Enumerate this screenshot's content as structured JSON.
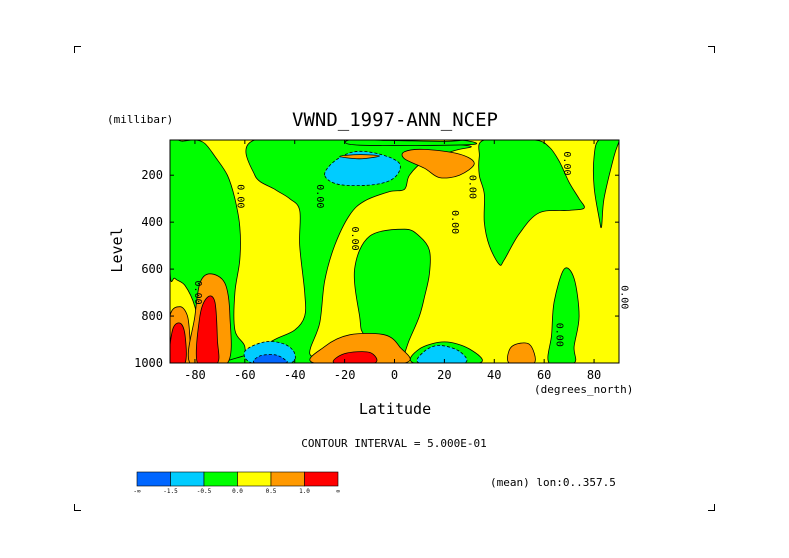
{
  "chart_data": {
    "type": "heatmap",
    "title": "VWND_1997-ANN_NCEP",
    "xlabel": "Latitude",
    "ylabel": "Level",
    "x_units": "(degrees_north)",
    "y_units": "(millibar)",
    "xlim": [
      -90,
      90
    ],
    "ylim": [
      1000,
      50
    ],
    "y_inverted": true,
    "x_ticks": [
      -80,
      -60,
      -40,
      -20,
      0,
      20,
      40,
      60,
      80
    ],
    "y_ticks": [
      200,
      400,
      600,
      800,
      1000
    ],
    "contour_interval_text": "CONTOUR INTERVAL = 5.000E-01",
    "annotation": "(mean) lon:0..357.5",
    "contour_labels": [
      {
        "text": "0.00",
        "lat": -63,
        "level": 290
      },
      {
        "text": "0.00",
        "lat": -31,
        "level": 290
      },
      {
        "text": "0.00",
        "lat": -17,
        "level": 470
      },
      {
        "text": "0.00",
        "lat": 23,
        "level": 400
      },
      {
        "text": "0.00",
        "lat": 30,
        "level": 250
      },
      {
        "text": "0.00",
        "lat": 68,
        "level": 150
      },
      {
        "text": "0.00",
        "lat": -80,
        "level": 700
      },
      {
        "text": "0.00",
        "lat": 65,
        "level": 880
      },
      {
        "text": "0.00",
        "lat": 91,
        "level": 720
      }
    ],
    "colorbar": {
      "labels": [
        "-∞",
        "-1.5",
        "-0.5",
        "0.0",
        "0.5",
        "1.0",
        "∞"
      ],
      "colors": [
        "#0066ff",
        "#00ccff",
        "#00ff00",
        "#ffff00",
        "#ff9900",
        "#ff0000"
      ],
      "bins": [
        {
          "from": "-∞",
          "to": -1.5,
          "color": "#0066ff"
        },
        {
          "from": -1.5,
          "to": -0.5,
          "color": "#00ccff"
        },
        {
          "from": -0.5,
          "to": 0.0,
          "color": "#00ff00"
        },
        {
          "from": 0.0,
          "to": 0.5,
          "color": "#ffff00"
        },
        {
          "from": 0.5,
          "to": 1.0,
          "color": "#ff9900"
        },
        {
          "from": 1.0,
          "to": "∞",
          "color": "#ff0000"
        }
      ]
    },
    "background_color": "#ffff00",
    "regions": [
      {
        "color": "#00ff00",
        "value_range": [
          -0.5,
          0.0
        ],
        "points": [
          [
            -90,
            600
          ],
          [
            -90,
            50
          ],
          [
            -87,
            50
          ],
          [
            -85,
            55
          ],
          [
            -80,
            50
          ],
          [
            -76,
            65
          ],
          [
            -72,
            120
          ],
          [
            -67,
            200
          ],
          [
            -64,
            300
          ],
          [
            -62,
            420
          ],
          [
            -62,
            560
          ],
          [
            -64,
            700
          ],
          [
            -64,
            860
          ],
          [
            -60,
            930
          ],
          [
            -62,
            1000
          ],
          [
            -76,
            1000
          ],
          [
            -78,
            880
          ],
          [
            -80,
            760
          ],
          [
            -84,
            670
          ],
          [
            -88,
            640
          ]
        ]
      },
      {
        "color": "#00ff00",
        "value_range": [
          -0.5,
          0.0
        ],
        "points": [
          [
            -56,
            50
          ],
          [
            -12,
            50
          ],
          [
            -8,
            60
          ],
          [
            6,
            55
          ],
          [
            30,
            75
          ],
          [
            24,
            95
          ],
          [
            12,
            140
          ],
          [
            6,
            200
          ],
          [
            4,
            260
          ],
          [
            -2,
            270
          ],
          [
            -12,
            310
          ],
          [
            -18,
            370
          ],
          [
            -24,
            500
          ],
          [
            -28,
            650
          ],
          [
            -30,
            830
          ],
          [
            -34,
            960
          ],
          [
            -28,
            1000
          ],
          [
            -66,
            1000
          ],
          [
            -58,
            960
          ],
          [
            -48,
            900
          ],
          [
            -40,
            860
          ],
          [
            -36,
            800
          ],
          [
            -36,
            700
          ],
          [
            -38,
            500
          ],
          [
            -38,
            350
          ],
          [
            -42,
            300
          ],
          [
            -48,
            260
          ],
          [
            -56,
            200
          ]
        ]
      },
      {
        "color": "#00ff00",
        "value_range": [
          -0.5,
          0.0
        ],
        "points": [
          [
            -18,
            50
          ],
          [
            -2,
            52
          ],
          [
            20,
            56
          ],
          [
            28,
            52
          ],
          [
            30,
            70
          ],
          [
            -14,
            72
          ]
        ]
      },
      {
        "color": "#00ff00",
        "value_range": [
          -0.5,
          0.0
        ],
        "points": [
          [
            2,
            1000
          ],
          [
            6,
            900
          ],
          [
            10,
            800
          ],
          [
            12,
            720
          ],
          [
            14,
            620
          ],
          [
            14,
            520
          ],
          [
            10,
            460
          ],
          [
            4,
            430
          ],
          [
            -10,
            460
          ],
          [
            -16,
            600
          ],
          [
            -14,
            800
          ],
          [
            -12,
            880
          ],
          [
            -2,
            920
          ]
        ]
      },
      {
        "color": "#00ff00",
        "value_range": [
          -0.5,
          0.0
        ],
        "points": [
          [
            36,
            50
          ],
          [
            56,
            50
          ],
          [
            62,
            80
          ],
          [
            66,
            140
          ],
          [
            70,
            230
          ],
          [
            74,
            300
          ],
          [
            76,
            340
          ],
          [
            70,
            350
          ],
          [
            58,
            360
          ],
          [
            50,
            450
          ],
          [
            44,
            560
          ],
          [
            42,
            580
          ],
          [
            38,
            500
          ],
          [
            36,
            400
          ],
          [
            36,
            280
          ],
          [
            34,
            200
          ],
          [
            34,
            120
          ]
        ]
      },
      {
        "color": "#00ff00",
        "value_range": [
          -0.5,
          0.0
        ],
        "points": [
          [
            82,
            50
          ],
          [
            89,
            50
          ],
          [
            90,
            55
          ],
          [
            88,
            120
          ],
          [
            84,
            300
          ],
          [
            83,
            420
          ],
          [
            82,
            380
          ],
          [
            80,
            250
          ],
          [
            80,
            120
          ]
        ]
      },
      {
        "color": "#00ff00",
        "value_range": [
          -0.5,
          0.0
        ],
        "points": [
          [
            62,
            1000
          ],
          [
            63,
            880
          ],
          [
            64,
            740
          ],
          [
            68,
            600
          ],
          [
            72,
            640
          ],
          [
            74,
            800
          ],
          [
            72,
            930
          ],
          [
            72,
            1000
          ]
        ]
      },
      {
        "color": "#00ff00",
        "value_range": [
          -0.5,
          0.0
        ],
        "points": [
          [
            8,
            1000
          ],
          [
            10,
            940
          ],
          [
            20,
            910
          ],
          [
            30,
            940
          ],
          [
            34,
            1000
          ]
        ]
      },
      {
        "color": "#00ccff",
        "value_range": [
          -1.5,
          -0.5
        ],
        "points": [
          [
            -57,
            1000
          ],
          [
            -60,
            950
          ],
          [
            -52,
            910
          ],
          [
            -44,
            920
          ],
          [
            -40,
            960
          ],
          [
            -42,
            1000
          ]
        ]
      },
      {
        "color": "#00ccff",
        "value_range": [
          -1.5,
          -0.5
        ],
        "points": [
          [
            -28,
            200
          ],
          [
            -24,
            140
          ],
          [
            -16,
            100
          ],
          [
            -6,
            110
          ],
          [
            2,
            150
          ],
          [
            0,
            210
          ],
          [
            -8,
            240
          ],
          [
            -22,
            240
          ]
        ]
      },
      {
        "color": "#00ccff",
        "value_range": [
          -1.5,
          -0.5
        ],
        "points": [
          [
            10,
            1000
          ],
          [
            12,
            950
          ],
          [
            18,
            925
          ],
          [
            26,
            950
          ],
          [
            28,
            1000
          ]
        ]
      },
      {
        "color": "#0066ff",
        "value_range": [
          "-∞",
          -1.5
        ],
        "points": [
          [
            -56,
            1000
          ],
          [
            -54,
            970
          ],
          [
            -48,
            965
          ],
          [
            -44,
            985
          ],
          [
            -44,
            1000
          ]
        ]
      },
      {
        "color": "#ff9900",
        "value_range": [
          0.5,
          1.0
        ],
        "points": [
          [
            -90,
            1000
          ],
          [
            -90,
            800
          ],
          [
            -86,
            760
          ],
          [
            -83,
            800
          ],
          [
            -82,
            900
          ],
          [
            -82,
            1000
          ]
        ]
      },
      {
        "color": "#ff9900",
        "value_range": [
          0.5,
          1.0
        ],
        "points": [
          [
            -82,
            1000
          ],
          [
            -80,
            800
          ],
          [
            -78,
            660
          ],
          [
            -74,
            620
          ],
          [
            -68,
            660
          ],
          [
            -66,
            800
          ],
          [
            -67,
            1000
          ]
        ]
      },
      {
        "color": "#ff9900",
        "value_range": [
          0.5,
          1.0
        ],
        "points": [
          [
            -32,
            1000
          ],
          [
            -28,
            930
          ],
          [
            -18,
            880
          ],
          [
            -4,
            880
          ],
          [
            2,
            930
          ],
          [
            4,
            1000
          ]
        ]
      },
      {
        "color": "#ff9900",
        "value_range": [
          0.5,
          1.0
        ],
        "points": [
          [
            4,
            100
          ],
          [
            12,
            90
          ],
          [
            26,
            110
          ],
          [
            32,
            150
          ],
          [
            26,
            200
          ],
          [
            18,
            210
          ],
          [
            12,
            170
          ],
          [
            4,
            130
          ]
        ]
      },
      {
        "color": "#ff9900",
        "value_range": [
          0.5,
          1.0
        ],
        "points": [
          [
            46,
            1000
          ],
          [
            47,
            930
          ],
          [
            54,
            920
          ],
          [
            56,
            1000
          ]
        ]
      },
      {
        "color": "#ff9900",
        "value_range": [
          0.5,
          1.0
        ],
        "points": [
          [
            -22,
            120
          ],
          [
            -14,
            112
          ],
          [
            -6,
            118
          ],
          [
            -14,
            130
          ]
        ]
      },
      {
        "color": "#ff0000",
        "value_range": [
          1.0,
          "∞"
        ],
        "points": [
          [
            -90,
            1000
          ],
          [
            -89,
            860
          ],
          [
            -86,
            830
          ],
          [
            -84,
            880
          ],
          [
            -84,
            1000
          ]
        ]
      },
      {
        "color": "#ff0000",
        "value_range": [
          1.0,
          "∞"
        ],
        "points": [
          [
            -79,
            1000
          ],
          [
            -78,
            800
          ],
          [
            -75,
            720
          ],
          [
            -72,
            740
          ],
          [
            -71,
            900
          ],
          [
            -71,
            1000
          ]
        ]
      },
      {
        "color": "#ff0000",
        "value_range": [
          1.0,
          "∞"
        ],
        "points": [
          [
            -24,
            1000
          ],
          [
            -20,
            960
          ],
          [
            -10,
            955
          ],
          [
            -8,
            1000
          ]
        ]
      }
    ]
  }
}
